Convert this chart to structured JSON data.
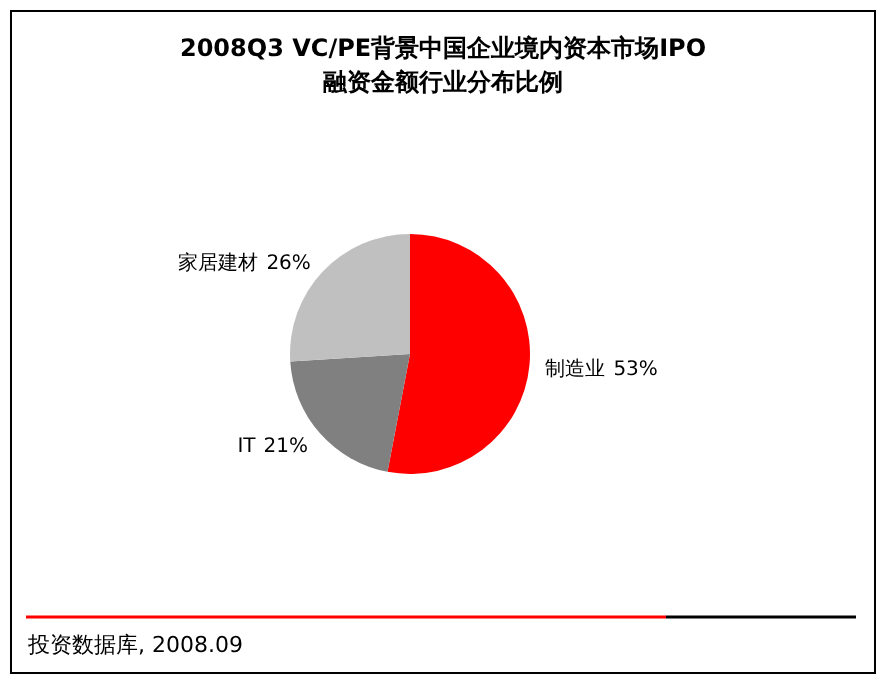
{
  "chart_data": {
    "type": "pie",
    "title": "2008Q3 VC/PE背景中国企业境内资本市场IPO\n融资金额行业分布比例",
    "categories": [
      "制造业",
      "IT",
      "家居建材"
    ],
    "values": [
      53,
      21,
      26
    ],
    "colors": [
      "#ff0000",
      "#808080",
      "#c0c0c0"
    ],
    "value_labels": [
      "53%",
      "21%",
      "26%"
    ],
    "annotations": [
      "投资数据库, 2008.09"
    ]
  }
}
